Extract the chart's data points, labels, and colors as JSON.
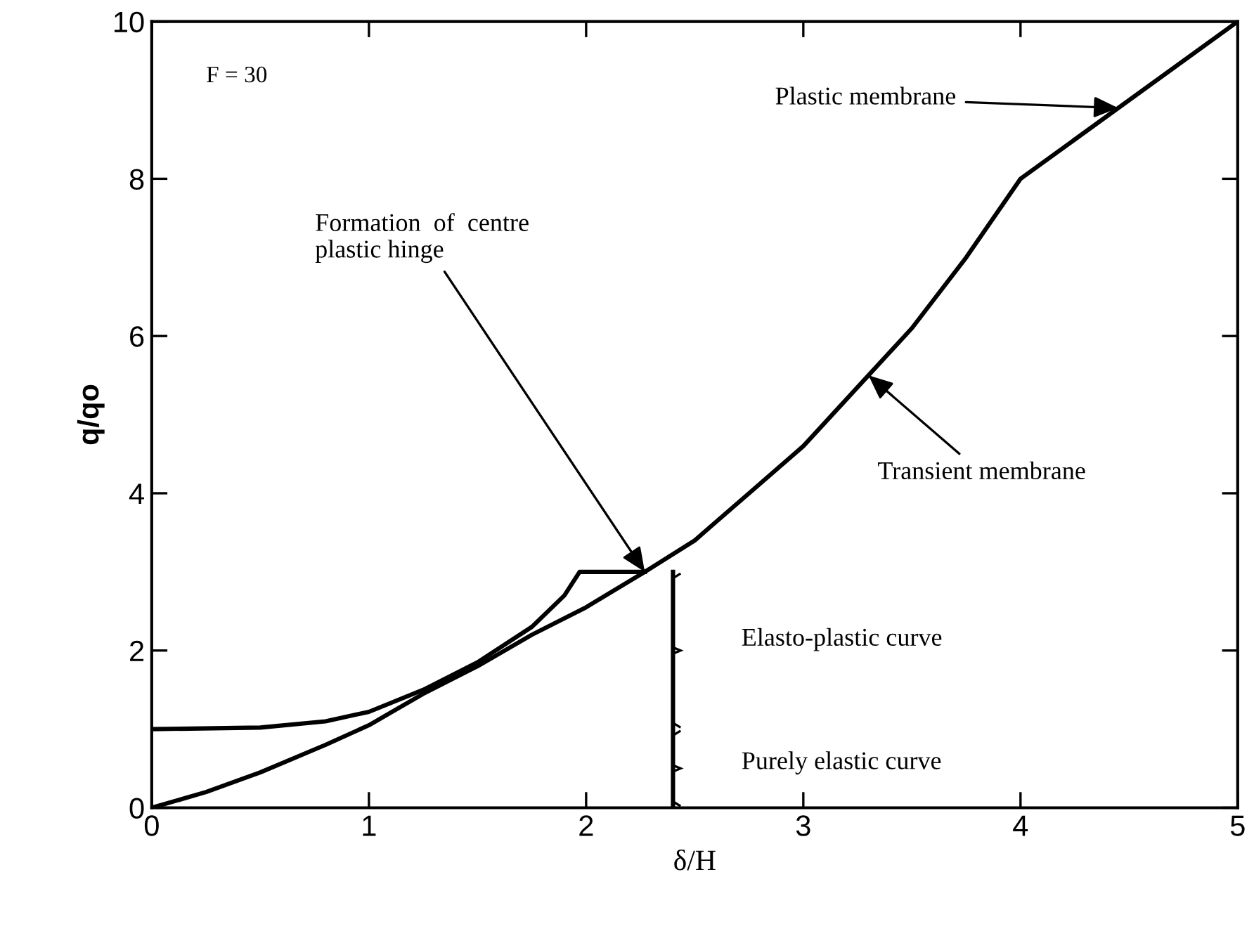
{
  "chart_data": {
    "type": "line",
    "xlabel": "δ/H",
    "ylabel": "q/qo",
    "xlim": [
      0,
      5
    ],
    "ylim": [
      0,
      10
    ],
    "xticks": [
      0,
      1,
      2,
      3,
      4,
      5
    ],
    "yticks": [
      0,
      2,
      4,
      6,
      8,
      10
    ],
    "grid": false,
    "marker": "none",
    "line_style": "solid",
    "series": [
      {
        "color": "#000000",
        "x": [
          0,
          0.5,
          0.8,
          1.0,
          1.25,
          1.5,
          1.75,
          1.9,
          1.97,
          2.27
        ],
        "values": [
          1,
          1.02,
          1.1,
          1.22,
          1.5,
          1.85,
          2.3,
          2.7,
          3.0,
          3.0
        ]
      },
      {
        "color": "#000000",
        "x": [
          0,
          0.25,
          0.5,
          0.8,
          1.0,
          1.25,
          1.5,
          1.75,
          2.0,
          2.27,
          2.5,
          2.75,
          3.0,
          3.3,
          3.5,
          3.75,
          4.0,
          5.0
        ],
        "values": [
          0,
          0.2,
          0.45,
          0.8,
          1.05,
          1.45,
          1.8,
          2.2,
          2.55,
          3.0,
          3.4,
          4.0,
          4.6,
          5.5,
          6.1,
          7.0,
          8.0,
          10.0
        ]
      },
      {
        "color": "#000000",
        "x": [
          2.4,
          2.4,
          2.4
        ],
        "values": [
          0,
          1,
          3
        ]
      }
    ],
    "annotations": [
      "F = 30",
      {
        "text": "Plastic membrane",
        "x": 4.45,
        "y": 8.9
      },
      {
        "text": "Transient membrane",
        "x": 3.3,
        "y": 5.5
      },
      {
        "text": "Formation  of  centre\nplastic hinge",
        "x": 2.27,
        "y": 3.0
      },
      "Elasto-plastic curve",
      "Purely elastic curve"
    ]
  }
}
